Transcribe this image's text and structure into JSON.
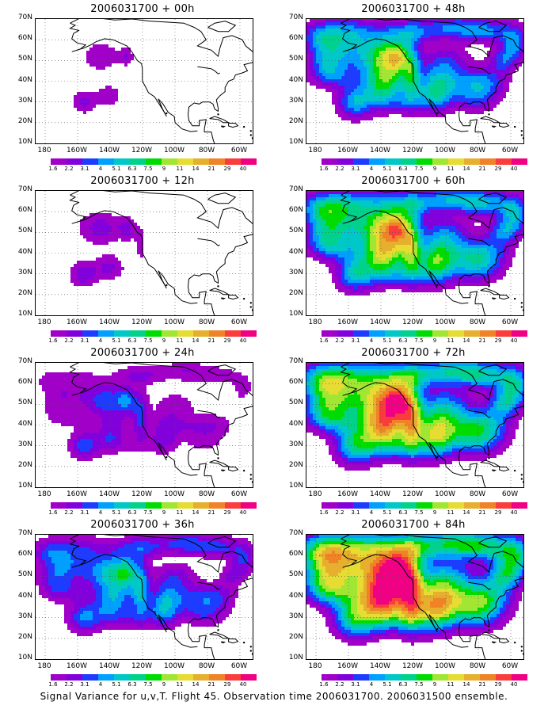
{
  "caption": "Signal Variance for u,v,T. Flight 45. Observation time 2006031700. 2006031500 ensemble.",
  "lat_labels": [
    "70N",
    "60N",
    "50N",
    "40N",
    "30N",
    "20N",
    "10N"
  ],
  "lon_labels": [
    "180",
    "160W",
    "140W",
    "120W",
    "100W",
    "80W",
    "60W"
  ],
  "colorbar": {
    "levels": [
      "1.6",
      "2.2",
      "3.1",
      "4",
      "5.1",
      "6.3",
      "7.5",
      "9",
      "11",
      "14",
      "21",
      "29",
      "40"
    ],
    "colors": [
      "#a000c8",
      "#8200dc",
      "#1e3cff",
      "#00a0ff",
      "#00c8c8",
      "#00d28c",
      "#00dc00",
      "#a0e632",
      "#e6dc32",
      "#e6af2d",
      "#f08228",
      "#fa3c3c",
      "#f00082"
    ]
  },
  "panels": [
    {
      "title": "2006031700 + 00h",
      "intensity": 0
    },
    {
      "title": "2006031700 + 48h",
      "intensity": 4
    },
    {
      "title": "2006031700 + 12h",
      "intensity": 1
    },
    {
      "title": "2006031700 + 60h",
      "intensity": 5
    },
    {
      "title": "2006031700 + 24h",
      "intensity": 2
    },
    {
      "title": "2006031700 + 72h",
      "intensity": 6
    },
    {
      "title": "2006031700 + 36h",
      "intensity": 3
    },
    {
      "title": "2006031700 + 84h",
      "intensity": 7
    }
  ]
}
